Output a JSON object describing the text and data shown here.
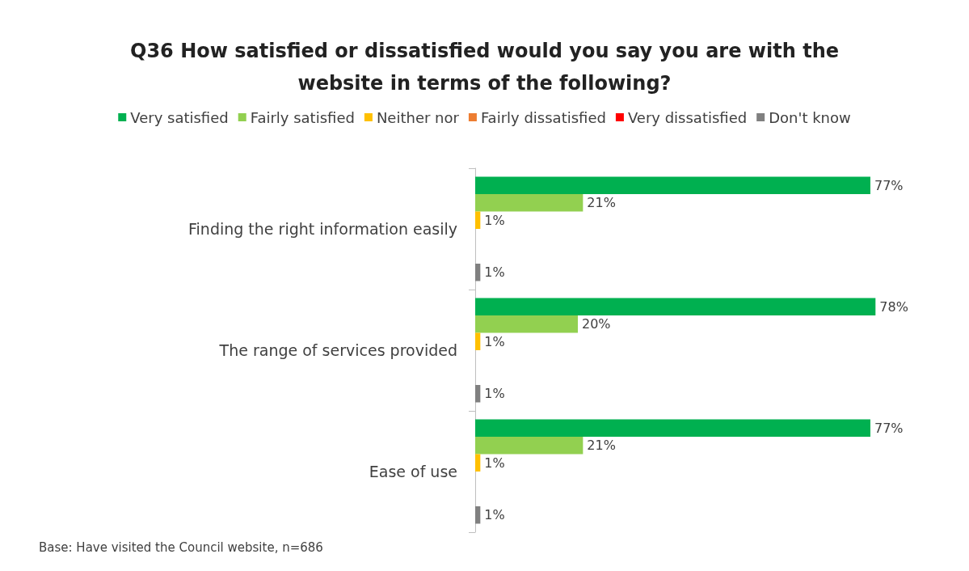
{
  "chart_data": {
    "type": "bar",
    "orientation": "horizontal",
    "title": "Q36 How satisfied or dissatisfied would you say you are with the\nwebsite in terms of the following?",
    "categories": [
      "Finding the right information easily",
      "The range of services provided",
      "Ease of use"
    ],
    "series": [
      {
        "name": "Very satisfied",
        "color": "#00b050",
        "values": [
          77,
          78,
          77
        ],
        "value_labels": [
          "77%",
          "78%",
          "77%"
        ]
      },
      {
        "name": "Fairly satisfied",
        "color": "#92d050",
        "values": [
          21,
          20,
          21
        ],
        "value_labels": [
          "21%",
          "20%",
          "21%"
        ]
      },
      {
        "name": "Neither nor",
        "color": "#ffc000",
        "values": [
          1,
          1,
          1
        ],
        "value_labels": [
          "1%",
          "1%",
          "1%"
        ]
      },
      {
        "name": "Fairly dissatisfied",
        "color": "#ed7d31",
        "values": [
          null,
          null,
          null
        ],
        "value_labels": [
          null,
          null,
          null
        ]
      },
      {
        "name": "Very dissatisfied",
        "color": "#ff0000",
        "values": [
          null,
          null,
          null
        ],
        "value_labels": [
          null,
          null,
          null
        ]
      },
      {
        "name": "Don't know",
        "color": "#808080",
        "values": [
          1,
          1,
          1
        ],
        "value_labels": [
          "1%",
          "1%",
          "1%"
        ]
      }
    ],
    "legend": "top",
    "annotations": [
      "Base: Have visited the Council website, n=686"
    ]
  }
}
